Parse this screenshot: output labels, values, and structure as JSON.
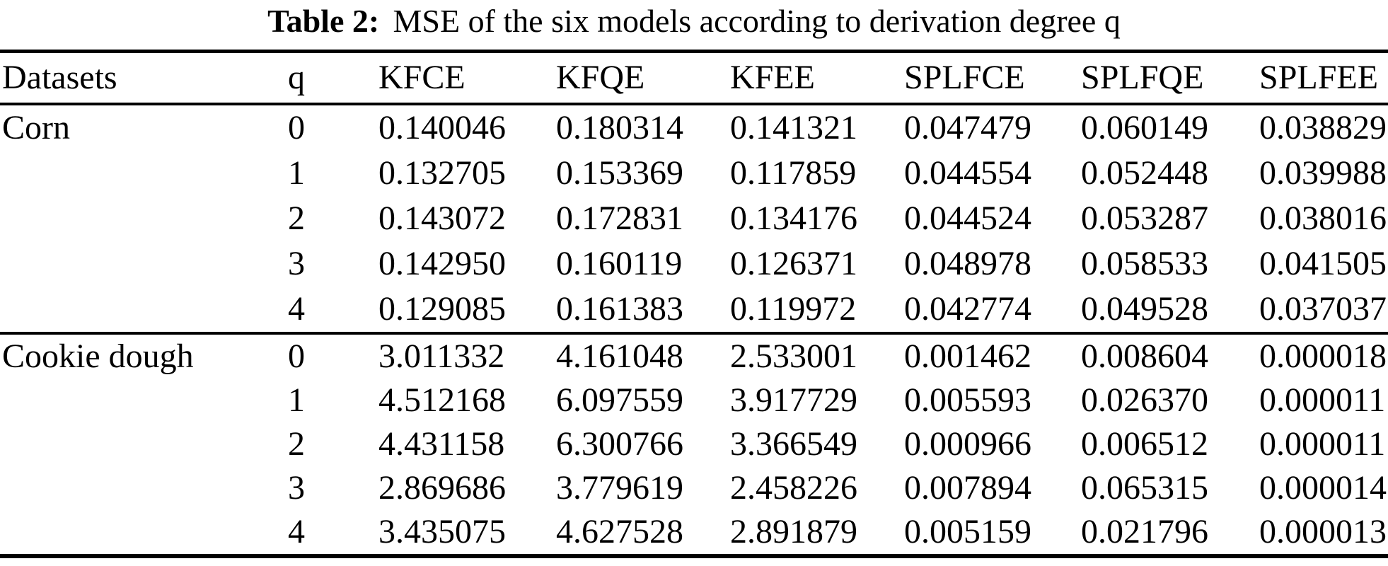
{
  "caption": {
    "label": "Table 2:",
    "text": "MSE of the six models according to derivation degree q"
  },
  "table": {
    "columns": [
      "Datasets",
      "q",
      "KFCE",
      "KFQE",
      "KFEE",
      "SPLFCE",
      "SPLFQE",
      "SPLFEE"
    ],
    "groups": [
      {
        "dataset": "Corn",
        "rows": [
          [
            "0",
            "0.140046",
            "0.180314",
            "0.141321",
            "0.047479",
            "0.060149",
            "0.038829"
          ],
          [
            "1",
            "0.132705",
            "0.153369",
            "0.117859",
            "0.044554",
            "0.052448",
            "0.039988"
          ],
          [
            "2",
            "0.143072",
            "0.172831",
            "0.134176",
            "0.044524",
            "0.053287",
            "0.038016"
          ],
          [
            "3",
            "0.142950",
            "0.160119",
            "0.126371",
            "0.048978",
            "0.058533",
            "0.041505"
          ],
          [
            "4",
            "0.129085",
            "0.161383",
            "0.119972",
            "0.042774",
            "0.049528",
            "0.037037"
          ]
        ]
      },
      {
        "dataset": "Cookie dough",
        "rows": [
          [
            "0",
            "3.011332",
            "4.161048",
            "2.533001",
            "0.001462",
            "0.008604",
            "0.000018"
          ],
          [
            "1",
            "4.512168",
            "6.097559",
            "3.917729",
            "0.005593",
            "0.026370",
            "0.000011"
          ],
          [
            "2",
            "4.431158",
            "6.300766",
            "3.366549",
            "0.000966",
            "0.006512",
            "0.000011"
          ],
          [
            "3",
            "2.869686",
            "3.779619",
            "2.458226",
            "0.007894",
            "0.065315",
            "0.000014"
          ],
          [
            "4",
            "3.435075",
            "4.627528",
            "2.891879",
            "0.005159",
            "0.021796",
            "0.000013"
          ]
        ]
      }
    ]
  },
  "colors": {
    "text": "#000000",
    "rule": "#000000",
    "background": "#ffffff"
  }
}
